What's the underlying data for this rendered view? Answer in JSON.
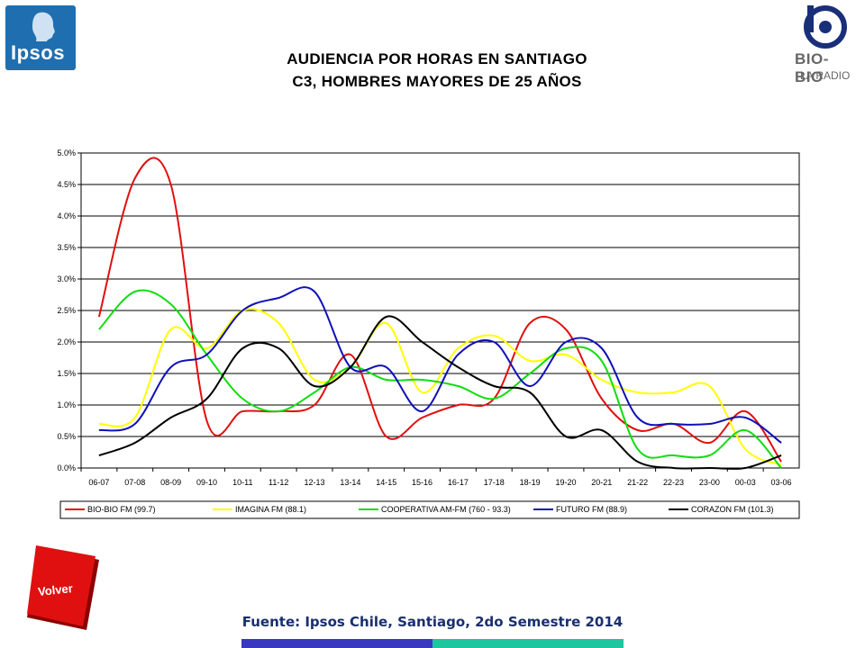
{
  "logos": {
    "left": "Ipsos",
    "right_line1": "BIO-BIO",
    "right_line2": "LA RADIO"
  },
  "title_line1": "AUDIENCIA POR HORAS EN SANTIAGO",
  "title_line2": "C3, HOMBRES MAYORES DE 25 AÑOS",
  "source": "Fuente: Ipsos Chile, Santiago, 2do Semestre 2014",
  "back_button": "Volver",
  "chart_data": {
    "type": "line",
    "categories": [
      "06-07",
      "07-08",
      "08-09",
      "09-10",
      "10-11",
      "11-12",
      "12-13",
      "13-14",
      "14-15",
      "15-16",
      "16-17",
      "17-18",
      "18-19",
      "19-20",
      "20-21",
      "21-22",
      "22-23",
      "23-00",
      "00-03",
      "03-06"
    ],
    "ylim": [
      0,
      5.0
    ],
    "yticks": [
      "0.0%",
      "0.5%",
      "1.0%",
      "1.5%",
      "2.0%",
      "2.5%",
      "3.0%",
      "3.5%",
      "4.0%",
      "4.5%",
      "5.0%"
    ],
    "grid": true,
    "legend_position": "bottom",
    "series": [
      {
        "name": "BIO-BIO FM (99.7)",
        "color": "#e01010",
        "values": [
          2.4,
          4.6,
          4.5,
          0.75,
          0.9,
          0.9,
          1.0,
          1.8,
          0.5,
          0.8,
          1.0,
          1.1,
          2.3,
          2.2,
          1.1,
          0.6,
          0.7,
          0.4,
          0.9,
          0.1
        ]
      },
      {
        "name": "IMAGINA FM (88.1)",
        "color": "#ffff00",
        "values": [
          0.7,
          0.8,
          2.2,
          1.9,
          2.5,
          2.3,
          1.4,
          1.6,
          2.3,
          1.2,
          1.9,
          2.1,
          1.7,
          1.8,
          1.4,
          1.2,
          1.2,
          1.3,
          0.3,
          0.05
        ]
      },
      {
        "name": "COOPERATIVA AM-FM (760 - 93.3)",
        "color": "#10dd10",
        "values": [
          2.2,
          2.8,
          2.6,
          1.8,
          1.1,
          0.9,
          1.2,
          1.6,
          1.4,
          1.4,
          1.3,
          1.1,
          1.5,
          1.9,
          1.7,
          0.3,
          0.2,
          0.2,
          0.6,
          0.0
        ]
      },
      {
        "name": "FUTURO FM (88.9)",
        "color": "#1010b8",
        "values": [
          0.6,
          0.7,
          1.6,
          1.8,
          2.5,
          2.7,
          2.8,
          1.6,
          1.6,
          0.9,
          1.8,
          2.0,
          1.3,
          2.0,
          1.9,
          0.8,
          0.7,
          0.7,
          0.8,
          0.4
        ]
      },
      {
        "name": "CORAZON FM (101.3)",
        "color": "#000000",
        "values": [
          0.2,
          0.4,
          0.8,
          1.1,
          1.9,
          1.9,
          1.3,
          1.6,
          2.4,
          2.0,
          1.6,
          1.3,
          1.2,
          0.5,
          0.6,
          0.1,
          0.0,
          0.0,
          0.0,
          0.2
        ]
      }
    ]
  }
}
